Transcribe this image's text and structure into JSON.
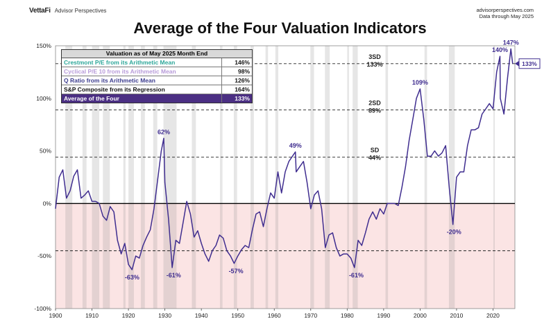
{
  "header": {
    "brand": "VettaFi",
    "brand_sub": "Advisor Perspectives",
    "source_line1": "advisorperspectives.com",
    "source_line2": "Data through May 2025"
  },
  "table": {
    "header": "Valuation as of May 2025 Month End",
    "rows": [
      {
        "label": "Crestmont P/E from its Arithmetic Mean",
        "value": "146%",
        "color": "#2ea79a"
      },
      {
        "label": "Cyclical P/E 10 from its Arithmetic Mean",
        "value": "98%",
        "color": "#b79bd9"
      },
      {
        "label": "Q Ratio from its Arithmetic Mean",
        "value": "126%",
        "color": "#3d3d8f"
      },
      {
        "label": "S&P Composite from its Regression",
        "value": "164%",
        "color": "#111111"
      },
      {
        "label": "Average of the Four",
        "value": "133%",
        "color": "#ffffff"
      }
    ]
  },
  "chart_data": {
    "type": "line",
    "title": "Average of the Four Valuation Indicators",
    "xlabel": "",
    "ylabel": "",
    "xlim": [
      1900,
      2026
    ],
    "ylim": [
      -100,
      150
    ],
    "x_ticks": [
      1900,
      1910,
      1920,
      1930,
      1940,
      1950,
      1960,
      1970,
      1980,
      1990,
      2000,
      2010,
      2020
    ],
    "y_ticks": [
      -100,
      -50,
      0,
      50,
      100,
      150
    ],
    "y_tick_labels": [
      "-100%",
      "-50%",
      "0%",
      "50%",
      "100%",
      "150%"
    ],
    "line_color": "#3f2d8f",
    "reference_lines": [
      {
        "label": "3SD",
        "value_label": "133%",
        "value": 133
      },
      {
        "label": "2SD",
        "value_label": "89%",
        "value": 89
      },
      {
        "label": "SD",
        "value_label": "44%",
        "value": 44
      },
      {
        "label": "",
        "value_label": "",
        "value": -45
      }
    ],
    "current_value_label": "133%",
    "recession_shading": [
      [
        1902.7,
        1904.6
      ],
      [
        1907.4,
        1908.5
      ],
      [
        1910.0,
        1912.0
      ],
      [
        1913.0,
        1914.9
      ],
      [
        1918.6,
        1919.2
      ],
      [
        1920.0,
        1921.5
      ],
      [
        1923.4,
        1924.5
      ],
      [
        1926.8,
        1927.9
      ],
      [
        1929.6,
        1933.2
      ],
      [
        1937.4,
        1938.5
      ],
      [
        1945.1,
        1945.8
      ],
      [
        1948.9,
        1949.8
      ],
      [
        1953.5,
        1954.4
      ],
      [
        1957.6,
        1958.3
      ],
      [
        1960.3,
        1961.1
      ],
      [
        1969.9,
        1970.9
      ],
      [
        1973.9,
        1975.2
      ],
      [
        1980.0,
        1980.5
      ],
      [
        1981.5,
        1982.9
      ],
      [
        1990.5,
        1991.2
      ],
      [
        2001.2,
        2001.9
      ],
      [
        2007.9,
        2009.5
      ],
      [
        2020.1,
        2020.4
      ]
    ],
    "annotations": [
      {
        "x": 1929.7,
        "y": 62,
        "text": "62%"
      },
      {
        "x": 1921.0,
        "y": -63,
        "text": "-63%"
      },
      {
        "x": 1932.4,
        "y": -61,
        "text": "-61%"
      },
      {
        "x": 1949.5,
        "y": -57,
        "text": "-57%"
      },
      {
        "x": 1965.8,
        "y": 49,
        "text": "49%"
      },
      {
        "x": 1982.5,
        "y": -61,
        "text": "-61%"
      },
      {
        "x": 2000.0,
        "y": 109,
        "text": "109%"
      },
      {
        "x": 2009.3,
        "y": -20,
        "text": "-20%"
      },
      {
        "x": 2021.9,
        "y": 140,
        "text": "140%"
      },
      {
        "x": 2024.9,
        "y": 147,
        "text": "147%"
      }
    ],
    "series": [
      {
        "values": [
          [
            1900,
            -5
          ],
          [
            1901,
            25
          ],
          [
            1902,
            32
          ],
          [
            1903,
            5
          ],
          [
            1904,
            12
          ],
          [
            1905,
            26
          ],
          [
            1906,
            32
          ],
          [
            1907,
            5
          ],
          [
            1908,
            8
          ],
          [
            1909,
            12
          ],
          [
            1910,
            2
          ],
          [
            1911,
            2
          ],
          [
            1912,
            0
          ],
          [
            1913,
            -12
          ],
          [
            1914,
            -16
          ],
          [
            1915,
            -3
          ],
          [
            1916,
            -8
          ],
          [
            1917,
            -35
          ],
          [
            1918,
            -48
          ],
          [
            1919,
            -38
          ],
          [
            1920,
            -58
          ],
          [
            1921,
            -63
          ],
          [
            1922,
            -50
          ],
          [
            1923,
            -52
          ],
          [
            1924,
            -40
          ],
          [
            1925,
            -32
          ],
          [
            1926,
            -25
          ],
          [
            1927,
            -5
          ],
          [
            1928,
            22
          ],
          [
            1929,
            50
          ],
          [
            1929.7,
            62
          ],
          [
            1930,
            20
          ],
          [
            1931,
            -15
          ],
          [
            1932,
            -61
          ],
          [
            1933,
            -35
          ],
          [
            1934,
            -38
          ],
          [
            1935,
            -18
          ],
          [
            1936,
            2
          ],
          [
            1937,
            -10
          ],
          [
            1938,
            -32
          ],
          [
            1939,
            -26
          ],
          [
            1940,
            -38
          ],
          [
            1941,
            -48
          ],
          [
            1942,
            -55
          ],
          [
            1943,
            -45
          ],
          [
            1944,
            -40
          ],
          [
            1945,
            -30
          ],
          [
            1946,
            -33
          ],
          [
            1947,
            -45
          ],
          [
            1948,
            -50
          ],
          [
            1949,
            -57
          ],
          [
            1950,
            -50
          ],
          [
            1951,
            -44
          ],
          [
            1952,
            -40
          ],
          [
            1953,
            -42
          ],
          [
            1954,
            -25
          ],
          [
            1955,
            -10
          ],
          [
            1956,
            -8
          ],
          [
            1957,
            -22
          ],
          [
            1958,
            -5
          ],
          [
            1959,
            10
          ],
          [
            1960,
            5
          ],
          [
            1961,
            30
          ],
          [
            1962,
            10
          ],
          [
            1963,
            30
          ],
          [
            1964,
            40
          ],
          [
            1965,
            45
          ],
          [
            1965.8,
            49
          ],
          [
            1966,
            30
          ],
          [
            1967,
            35
          ],
          [
            1968,
            40
          ],
          [
            1969,
            20
          ],
          [
            1970,
            -5
          ],
          [
            1971,
            8
          ],
          [
            1972,
            12
          ],
          [
            1973,
            -5
          ],
          [
            1974,
            -42
          ],
          [
            1975,
            -30
          ],
          [
            1976,
            -28
          ],
          [
            1977,
            -42
          ],
          [
            1978,
            -50
          ],
          [
            1979,
            -48
          ],
          [
            1980,
            -48
          ],
          [
            1981,
            -52
          ],
          [
            1982,
            -61
          ],
          [
            1983,
            -35
          ],
          [
            1984,
            -40
          ],
          [
            1985,
            -28
          ],
          [
            1986,
            -15
          ],
          [
            1987,
            -8
          ],
          [
            1988,
            -15
          ],
          [
            1989,
            -5
          ],
          [
            1990,
            -10
          ],
          [
            1991,
            0
          ],
          [
            1992,
            0
          ],
          [
            1993,
            0
          ],
          [
            1994,
            -2
          ],
          [
            1995,
            15
          ],
          [
            1996,
            35
          ],
          [
            1997,
            60
          ],
          [
            1998,
            80
          ],
          [
            1999,
            100
          ],
          [
            2000,
            109
          ],
          [
            2001,
            80
          ],
          [
            2002,
            45
          ],
          [
            2003,
            45
          ],
          [
            2004,
            50
          ],
          [
            2005,
            45
          ],
          [
            2006,
            48
          ],
          [
            2007,
            55
          ],
          [
            2008,
            15
          ],
          [
            2009,
            -20
          ],
          [
            2010,
            25
          ],
          [
            2011,
            30
          ],
          [
            2012,
            30
          ],
          [
            2013,
            55
          ],
          [
            2014,
            70
          ],
          [
            2015,
            70
          ],
          [
            2016,
            72
          ],
          [
            2017,
            85
          ],
          [
            2018,
            90
          ],
          [
            2019,
            95
          ],
          [
            2020,
            90
          ],
          [
            2021,
            125
          ],
          [
            2021.9,
            140
          ],
          [
            2022,
            100
          ],
          [
            2023,
            85
          ],
          [
            2024,
            120
          ],
          [
            2024.9,
            147
          ],
          [
            2025.4,
            133
          ]
        ]
      }
    ]
  }
}
